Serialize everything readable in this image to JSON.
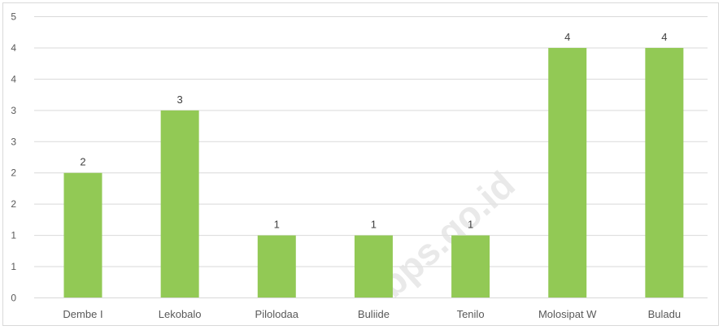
{
  "chart_data": {
    "type": "bar",
    "title": "",
    "xlabel": "",
    "ylabel": "",
    "categories": [
      "Dembe I",
      "Lekobalo",
      "Pilolodaa",
      "Buliide",
      "Tenilo",
      "Molosipat W",
      "Buladu"
    ],
    "values": [
      2,
      3,
      1,
      1,
      1,
      4,
      4
    ],
    "y_tick_labels": [
      "0",
      "1",
      "1",
      "2",
      "2",
      "3",
      "3",
      "4",
      "4",
      "5"
    ],
    "ylim": [
      0,
      4.5
    ],
    "grid": true,
    "legend": "none",
    "bar_color": "#92c955",
    "watermark": "bps.go.id"
  }
}
